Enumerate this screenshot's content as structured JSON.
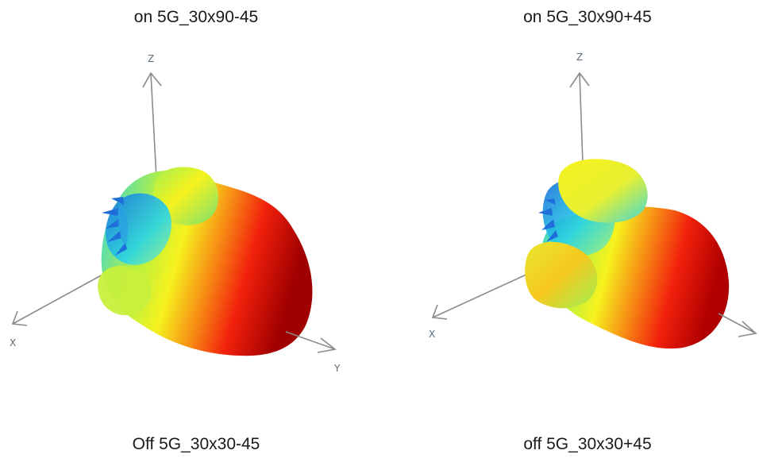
{
  "captions": {
    "top_left": "on 5G_30x90-45",
    "top_right": "on 5G_30x90+45",
    "bottom_left": "Off 5G_30x30-45",
    "bottom_right": "off 5G_30x30+45"
  },
  "axes": {
    "left": {
      "z": "Z",
      "x": "X",
      "y": "Y"
    },
    "right": {
      "z": "Z",
      "x": "X"
    }
  },
  "colors": {
    "axis": "#8a8a8a",
    "low": "#1e6fd9",
    "mid_low": "#26d3e8",
    "mid": "#f6f21e",
    "high": "#f2200c",
    "peak": "#a00000"
  }
}
